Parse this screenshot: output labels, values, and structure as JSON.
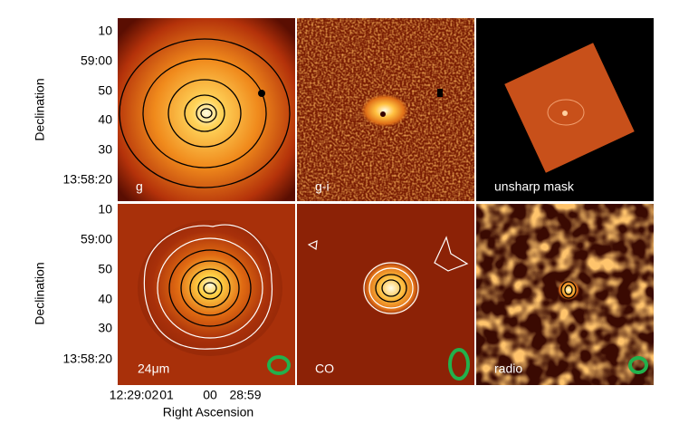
{
  "y_axis_label": "Declination",
  "x_axis_label": "Right Ascension",
  "y_ticks": [
    "10",
    "59:00",
    "50",
    "40",
    "30",
    "13:58:20"
  ],
  "x_ticks": [
    "12:29:02",
    "01",
    "00",
    "28:59"
  ],
  "panels": [
    {
      "label": "g"
    },
    {
      "label": "g-i"
    },
    {
      "label": "unsharp mask"
    },
    {
      "label": "24μm"
    },
    {
      "label": "CO"
    },
    {
      "label": "radio"
    }
  ]
}
